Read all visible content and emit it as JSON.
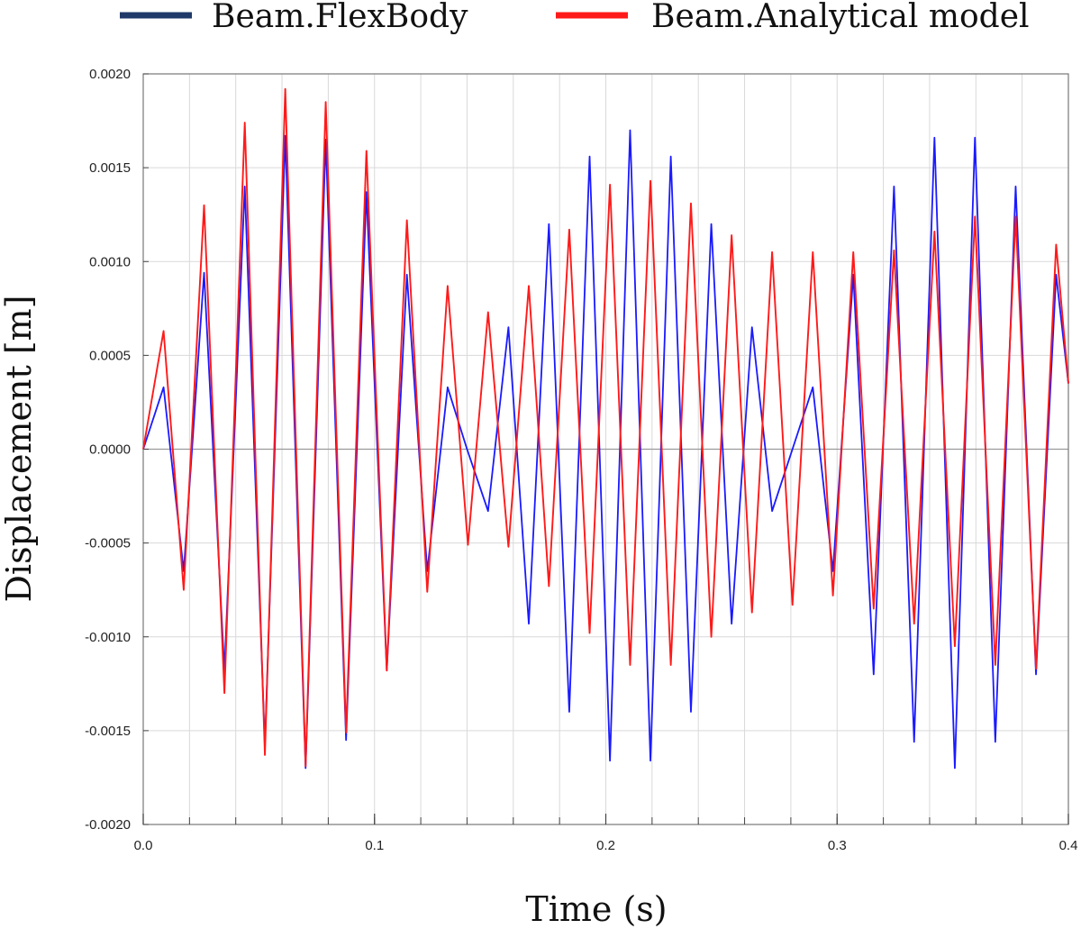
{
  "chart_data": {
    "type": "line",
    "title": "",
    "xlabel": "Time (s)",
    "ylabel": "Displacement [m]",
    "xlim": [
      0.0,
      0.4
    ],
    "ylim": [
      -0.002,
      0.002
    ],
    "x_ticks": [
      0.0,
      0.1,
      0.2,
      0.3,
      0.4
    ],
    "x_tick_labels": [
      "0.0",
      "0.1",
      "0.2",
      "0.3",
      "0.4"
    ],
    "y_ticks": [
      0.002,
      0.0015,
      0.001,
      0.0005,
      0.0,
      -0.0005,
      -0.001,
      -0.0015,
      -0.002
    ],
    "y_tick_labels": [
      "0.0020",
      "0.0015",
      "0.0010",
      "0.0005",
      "0.0000",
      "-0.0005",
      "-0.0010",
      "-0.0015",
      "-0.0020"
    ],
    "grid": true,
    "legend_position": "top",
    "series": [
      {
        "name": "Beam.FlexBody",
        "color": "#1a1aff",
        "legend_color": "#1f3a68",
        "x": [
          0.0,
          0.0088,
          0.0175,
          0.0263,
          0.0351,
          0.0439,
          0.0526,
          0.0614,
          0.0702,
          0.0789,
          0.0877,
          0.0965,
          0.1053,
          0.114,
          0.1228,
          0.1316,
          0.14,
          0.1491,
          0.1579,
          0.1667,
          0.1754,
          0.1842,
          0.193,
          0.2018,
          0.2105,
          0.2193,
          0.2281,
          0.2368,
          0.2456,
          0.2544,
          0.2632,
          0.2719,
          0.2807,
          0.2895,
          0.2982,
          0.307,
          0.3158,
          0.3246,
          0.3333,
          0.3421,
          0.3509,
          0.3596,
          0.3684,
          0.3772,
          0.386,
          0.3947,
          0.4
        ],
        "y": [
          0.0,
          0.00033,
          -0.00065,
          0.00094,
          -0.00118,
          0.0014,
          -0.00158,
          0.00167,
          -0.0017,
          0.00165,
          -0.00155,
          0.00137,
          -0.00118,
          0.00093,
          -0.00065,
          0.00033,
          0.0,
          -0.00033,
          0.00065,
          -0.00093,
          0.0012,
          -0.0014,
          0.00156,
          -0.00166,
          0.0017,
          -0.00166,
          0.00156,
          -0.0014,
          0.0012,
          -0.00093,
          0.00065,
          -0.00033,
          0.0,
          0.00033,
          -0.00065,
          0.00093,
          -0.0012,
          0.0014,
          -0.00156,
          0.00166,
          -0.0017,
          0.00166,
          -0.00156,
          0.0014,
          -0.0012,
          0.00093,
          0.00035
        ]
      },
      {
        "name": "Beam.Analytical model",
        "color": "#ff1a1a",
        "legend_color": "#ff1a1a",
        "x": [
          0.0,
          0.0088,
          0.0175,
          0.0263,
          0.0351,
          0.0439,
          0.0526,
          0.0614,
          0.0702,
          0.0789,
          0.0877,
          0.0965,
          0.1053,
          0.114,
          0.1228,
          0.1316,
          0.1404,
          0.1491,
          0.1579,
          0.1667,
          0.1754,
          0.1842,
          0.193,
          0.2018,
          0.2105,
          0.2193,
          0.2281,
          0.2368,
          0.2456,
          0.2544,
          0.2632,
          0.2719,
          0.2807,
          0.2895,
          0.2982,
          0.307,
          0.3158,
          0.3246,
          0.3333,
          0.3421,
          0.3509,
          0.3596,
          0.3684,
          0.3772,
          0.386,
          0.3947,
          0.4
        ],
        "y": [
          0.0,
          0.00063,
          -0.00075,
          0.0013,
          -0.0013,
          0.00174,
          -0.00163,
          0.00192,
          -0.00169,
          0.00185,
          -0.00151,
          0.00159,
          -0.00118,
          0.00122,
          -0.00076,
          0.00087,
          -0.00051,
          0.00073,
          -0.00052,
          0.00087,
          -0.00073,
          0.00117,
          -0.00098,
          0.00141,
          -0.00115,
          0.00143,
          -0.00115,
          0.00131,
          -0.001,
          0.00114,
          -0.00087,
          0.00105,
          -0.00083,
          0.00105,
          -0.00078,
          0.00105,
          -0.00085,
          0.00106,
          -0.00093,
          0.00116,
          -0.00105,
          0.00124,
          -0.00115,
          0.00124,
          -0.00117,
          0.00109,
          0.00035
        ]
      }
    ]
  }
}
